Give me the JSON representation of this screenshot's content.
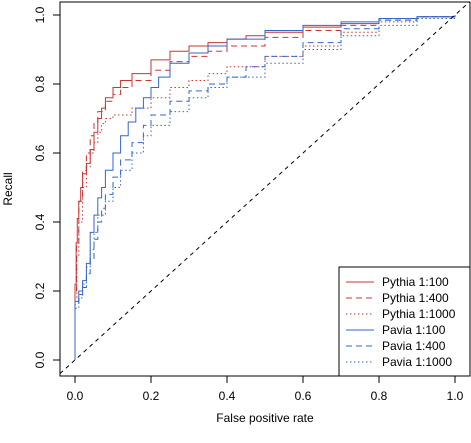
{
  "chart_data": {
    "type": "line",
    "title": "",
    "xlabel": "False positive rate",
    "ylabel": "Recall",
    "xlim": [
      0.0,
      1.0
    ],
    "ylim": [
      0.0,
      1.0
    ],
    "x_ticks": [
      "0.0",
      "0.2",
      "0.4",
      "0.6",
      "0.8",
      "1.0"
    ],
    "y_ticks": [
      "0.0",
      "0.2",
      "0.4",
      "0.6",
      "0.8",
      "1.0"
    ],
    "grid": false,
    "legend_position": "bottom-right",
    "reference_line": {
      "style": "dashed",
      "color": "#000000",
      "points": [
        [
          0.0,
          0.0
        ],
        [
          1.0,
          1.0
        ]
      ]
    },
    "series": [
      {
        "name": "Pythia 1:100",
        "color": "#cc3333",
        "style": "solid",
        "points": [
          [
            0.0,
            0.0
          ],
          [
            0.0,
            0.22
          ],
          [
            0.003,
            0.34
          ],
          [
            0.006,
            0.41
          ],
          [
            0.01,
            0.46
          ],
          [
            0.015,
            0.5
          ],
          [
            0.02,
            0.54
          ],
          [
            0.03,
            0.57
          ],
          [
            0.04,
            0.61
          ],
          [
            0.05,
            0.66
          ],
          [
            0.06,
            0.7
          ],
          [
            0.07,
            0.73
          ],
          [
            0.08,
            0.76
          ],
          [
            0.1,
            0.79
          ],
          [
            0.12,
            0.81
          ],
          [
            0.15,
            0.83
          ],
          [
            0.2,
            0.87
          ],
          [
            0.25,
            0.895
          ],
          [
            0.3,
            0.91
          ],
          [
            0.35,
            0.92
          ],
          [
            0.4,
            0.93
          ],
          [
            0.45,
            0.94
          ],
          [
            0.5,
            0.95
          ],
          [
            0.6,
            0.965
          ],
          [
            0.7,
            0.975
          ],
          [
            0.8,
            0.99
          ],
          [
            0.9,
            0.995
          ],
          [
            1.0,
            1.0
          ]
        ]
      },
      {
        "name": "Pythia 1:400",
        "color": "#cc3333",
        "style": "dashed",
        "points": [
          [
            0.0,
            0.0
          ],
          [
            0.0,
            0.2
          ],
          [
            0.004,
            0.33
          ],
          [
            0.01,
            0.46
          ],
          [
            0.02,
            0.55
          ],
          [
            0.03,
            0.6
          ],
          [
            0.04,
            0.65
          ],
          [
            0.05,
            0.69
          ],
          [
            0.06,
            0.72
          ],
          [
            0.08,
            0.75
          ],
          [
            0.1,
            0.77
          ],
          [
            0.12,
            0.79
          ],
          [
            0.15,
            0.81
          ],
          [
            0.2,
            0.84
          ],
          [
            0.25,
            0.865
          ],
          [
            0.3,
            0.88
          ],
          [
            0.35,
            0.895
          ],
          [
            0.4,
            0.91
          ],
          [
            0.5,
            0.935
          ],
          [
            0.6,
            0.955
          ],
          [
            0.7,
            0.97
          ],
          [
            0.8,
            0.985
          ],
          [
            0.9,
            0.995
          ],
          [
            1.0,
            1.0
          ]
        ]
      },
      {
        "name": "Pythia 1:1000",
        "color": "#cc3333",
        "style": "dotted",
        "points": [
          [
            0.0,
            0.0
          ],
          [
            0.0,
            0.18
          ],
          [
            0.005,
            0.3
          ],
          [
            0.01,
            0.4
          ],
          [
            0.02,
            0.5
          ],
          [
            0.03,
            0.56
          ],
          [
            0.04,
            0.6
          ],
          [
            0.05,
            0.63
          ],
          [
            0.06,
            0.66
          ],
          [
            0.07,
            0.685
          ],
          [
            0.08,
            0.7
          ],
          [
            0.1,
            0.71
          ],
          [
            0.15,
            0.73
          ],
          [
            0.2,
            0.76
          ],
          [
            0.25,
            0.79
          ],
          [
            0.3,
            0.81
          ],
          [
            0.35,
            0.83
          ],
          [
            0.4,
            0.85
          ],
          [
            0.5,
            0.88
          ],
          [
            0.6,
            0.91
          ],
          [
            0.7,
            0.95
          ],
          [
            0.8,
            0.98
          ],
          [
            0.9,
            0.995
          ],
          [
            1.0,
            1.0
          ]
        ]
      },
      {
        "name": "Pavia 1:100",
        "color": "#3366cc",
        "style": "solid",
        "points": [
          [
            0.0,
            0.0
          ],
          [
            0.0,
            0.17
          ],
          [
            0.01,
            0.2
          ],
          [
            0.02,
            0.23
          ],
          [
            0.03,
            0.28
          ],
          [
            0.04,
            0.37
          ],
          [
            0.05,
            0.42
          ],
          [
            0.06,
            0.47
          ],
          [
            0.07,
            0.5
          ],
          [
            0.08,
            0.55
          ],
          [
            0.1,
            0.6
          ],
          [
            0.12,
            0.65
          ],
          [
            0.14,
            0.69
          ],
          [
            0.16,
            0.73
          ],
          [
            0.18,
            0.76
          ],
          [
            0.2,
            0.79
          ],
          [
            0.22,
            0.82
          ],
          [
            0.25,
            0.86
          ],
          [
            0.3,
            0.89
          ],
          [
            0.35,
            0.91
          ],
          [
            0.4,
            0.93
          ],
          [
            0.5,
            0.955
          ],
          [
            0.6,
            0.97
          ],
          [
            0.7,
            0.98
          ],
          [
            0.8,
            0.99
          ],
          [
            0.9,
            0.995
          ],
          [
            1.0,
            1.0
          ]
        ]
      },
      {
        "name": "Pavia 1:400",
        "color": "#3366cc",
        "style": "dashed",
        "points": [
          [
            0.0,
            0.0
          ],
          [
            0.0,
            0.16
          ],
          [
            0.01,
            0.19
          ],
          [
            0.02,
            0.21
          ],
          [
            0.03,
            0.25
          ],
          [
            0.04,
            0.29
          ],
          [
            0.05,
            0.35
          ],
          [
            0.06,
            0.4
          ],
          [
            0.07,
            0.44
          ],
          [
            0.08,
            0.48
          ],
          [
            0.1,
            0.53
          ],
          [
            0.12,
            0.58
          ],
          [
            0.15,
            0.63
          ],
          [
            0.18,
            0.68
          ],
          [
            0.2,
            0.71
          ],
          [
            0.25,
            0.75
          ],
          [
            0.3,
            0.78
          ],
          [
            0.35,
            0.8
          ],
          [
            0.4,
            0.82
          ],
          [
            0.45,
            0.85
          ],
          [
            0.5,
            0.88
          ],
          [
            0.6,
            0.92
          ],
          [
            0.7,
            0.96
          ],
          [
            0.8,
            0.985
          ],
          [
            0.9,
            0.995
          ],
          [
            1.0,
            1.0
          ]
        ]
      },
      {
        "name": "Pavia 1:1000",
        "color": "#3366cc",
        "style": "dotted",
        "points": [
          [
            0.0,
            0.0
          ],
          [
            0.0,
            0.15
          ],
          [
            0.01,
            0.18
          ],
          [
            0.02,
            0.22
          ],
          [
            0.03,
            0.27
          ],
          [
            0.04,
            0.32
          ],
          [
            0.05,
            0.37
          ],
          [
            0.06,
            0.42
          ],
          [
            0.08,
            0.46
          ],
          [
            0.1,
            0.5
          ],
          [
            0.12,
            0.55
          ],
          [
            0.15,
            0.6
          ],
          [
            0.18,
            0.65
          ],
          [
            0.2,
            0.68
          ],
          [
            0.25,
            0.72
          ],
          [
            0.3,
            0.76
          ],
          [
            0.35,
            0.79
          ],
          [
            0.4,
            0.82
          ],
          [
            0.5,
            0.86
          ],
          [
            0.6,
            0.9
          ],
          [
            0.7,
            0.94
          ],
          [
            0.8,
            0.97
          ],
          [
            0.9,
            0.99
          ],
          [
            1.0,
            1.0
          ]
        ]
      }
    ]
  }
}
